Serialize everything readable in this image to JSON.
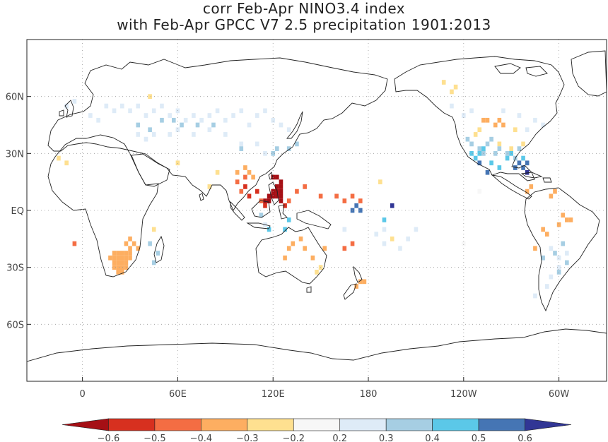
{
  "title": {
    "line1": "corr Feb-Apr NINO3.4 index",
    "line2": "with Feb-Apr GPCC V7 2.5 precipitation 1901:2013"
  },
  "map": {
    "lon_min": -35,
    "lon_max": 330,
    "lat_min": -90,
    "lat_max": 90,
    "grid": "dotted",
    "x_ticks": [
      {
        "lon": 0,
        "label": "0"
      },
      {
        "lon": 60,
        "label": "60E"
      },
      {
        "lon": 120,
        "label": "120E"
      },
      {
        "lon": 180,
        "label": "180"
      },
      {
        "lon": 240,
        "label": "120W"
      },
      {
        "lon": 300,
        "label": "60W"
      }
    ],
    "y_ticks": [
      {
        "lat": 60,
        "label": "60N"
      },
      {
        "lat": 30,
        "label": "30N"
      },
      {
        "lat": 0,
        "label": "EQ"
      },
      {
        "lat": -30,
        "label": "30S"
      },
      {
        "lat": -60,
        "label": "60S"
      }
    ]
  },
  "colorbar": {
    "colors": [
      "#a50f15",
      "#d7301f",
      "#f46d43",
      "#fdae61",
      "#fee090",
      "#f7f7f7",
      "#deebf7",
      "#a6cee3",
      "#5bc8e8",
      "#4575b4",
      "#313695"
    ],
    "labels": [
      "−0.6",
      "−0.5",
      "−0.4",
      "−0.3",
      "−0.2",
      "0.2",
      "0.3",
      "0.4",
      "0.5",
      "0.6"
    ]
  },
  "field": {
    "cells": [
      [
        120,
        17.5,
        0
      ],
      [
        122.5,
        17.5,
        0
      ],
      [
        125,
        15,
        0
      ],
      [
        122.5,
        12.5,
        0
      ],
      [
        125,
        12.5,
        0
      ],
      [
        120,
        10,
        0
      ],
      [
        122.5,
        10,
        0
      ],
      [
        125,
        10,
        0
      ],
      [
        117.5,
        7.5,
        0
      ],
      [
        120,
        7.5,
        0
      ],
      [
        122.5,
        7.5,
        0
      ],
      [
        125,
        7.5,
        0
      ],
      [
        115,
        5,
        0
      ],
      [
        117.5,
        5,
        0
      ],
      [
        125,
        5,
        0
      ],
      [
        115,
        2.5,
        1
      ],
      [
        127.5,
        2.5,
        1
      ],
      [
        110,
        10,
        1
      ],
      [
        102.5,
        12.5,
        1
      ],
      [
        105,
        7.5,
        1
      ],
      [
        102.5,
        17.5,
        2
      ],
      [
        97.5,
        15,
        2
      ],
      [
        100,
        10,
        2
      ],
      [
        112.5,
        5,
        2
      ],
      [
        130,
        5,
        2
      ],
      [
        135,
        10,
        2
      ],
      [
        140,
        12.5,
        2
      ],
      [
        150,
        7.5,
        2
      ],
      [
        160,
        7.5,
        2
      ],
      [
        165,
        5,
        2
      ],
      [
        170,
        7.5,
        2
      ],
      [
        175,
        5,
        2
      ],
      [
        165,
        -20,
        2
      ],
      [
        170,
        -17.5,
        2
      ],
      [
        -5,
        -17.5,
        2
      ],
      [
        20,
        -22.5,
        3
      ],
      [
        22.5,
        -22.5,
        3
      ],
      [
        25,
        -22.5,
        3
      ],
      [
        27.5,
        -22.5,
        3
      ],
      [
        30,
        -22.5,
        3
      ],
      [
        17.5,
        -25,
        3
      ],
      [
        20,
        -25,
        3
      ],
      [
        22.5,
        -25,
        3
      ],
      [
        25,
        -25,
        3
      ],
      [
        27.5,
        -25,
        3
      ],
      [
        30,
        -25,
        3
      ],
      [
        20,
        -27.5,
        3
      ],
      [
        22.5,
        -27.5,
        3
      ],
      [
        25,
        -27.5,
        3
      ],
      [
        27.5,
        -27.5,
        3
      ],
      [
        20,
        -30,
        3
      ],
      [
        22.5,
        -30,
        3
      ],
      [
        25,
        -30,
        3
      ],
      [
        27.5,
        -30,
        3
      ],
      [
        22.5,
        -32.5,
        3
      ],
      [
        25,
        -32.5,
        3
      ],
      [
        27.5,
        -17.5,
        3
      ],
      [
        32.5,
        -17.5,
        3
      ],
      [
        35,
        -20,
        3
      ],
      [
        30,
        -20,
        3
      ],
      [
        30,
        -15,
        3
      ],
      [
        97.5,
        20,
        3
      ],
      [
        105,
        20,
        3
      ],
      [
        107.5,
        17.5,
        3
      ],
      [
        102.5,
        22.5,
        3
      ],
      [
        132.5,
        -17.5,
        3
      ],
      [
        137.5,
        -15,
        3
      ],
      [
        130,
        -20,
        3
      ],
      [
        140,
        -20,
        3
      ],
      [
        145,
        -25,
        3
      ],
      [
        127.5,
        -25,
        3
      ],
      [
        152.5,
        -20,
        3
      ],
      [
        175,
        -37.5,
        3
      ],
      [
        172.5,
        -40,
        3
      ],
      [
        177.5,
        -37.5,
        3
      ],
      [
        252.5,
        47.5,
        3
      ],
      [
        255,
        47.5,
        3
      ],
      [
        260,
        45,
        3
      ],
      [
        265,
        45,
        3
      ],
      [
        262.5,
        47.5,
        3
      ],
      [
        302.5,
        -2.5,
        3
      ],
      [
        305,
        -5,
        3
      ],
      [
        307.5,
        -5,
        3
      ],
      [
        300,
        -7.5,
        3
      ],
      [
        290,
        -10,
        3
      ],
      [
        292.5,
        -12.5,
        3
      ],
      [
        285,
        -20,
        3
      ],
      [
        280,
        10,
        3
      ],
      [
        282.5,
        12.5,
        3
      ],
      [
        295,
        7.5,
        3
      ],
      [
        297.5,
        10,
        3
      ],
      [
        232.5,
        62.5,
        4
      ],
      [
        235,
        65,
        4
      ],
      [
        227.5,
        67.5,
        4
      ],
      [
        247.5,
        40,
        4
      ],
      [
        250,
        42.5,
        4
      ],
      [
        262.5,
        35,
        4
      ],
      [
        270,
        32.5,
        4
      ],
      [
        277.5,
        35,
        4
      ],
      [
        272.5,
        42.5,
        4
      ],
      [
        42.5,
        60,
        4
      ],
      [
        -15,
        27.5,
        4
      ],
      [
        -10,
        25,
        4
      ],
      [
        45,
        -10,
        4
      ],
      [
        150,
        -30,
        4
      ],
      [
        147.5,
        -32.5,
        4
      ],
      [
        60,
        25,
        4
      ],
      [
        80,
        12.5,
        4
      ],
      [
        85,
        20,
        4
      ],
      [
        187.5,
        15,
        4
      ],
      [
        195,
        -15,
        4
      ],
      [
        240,
        -17.5,
        5
      ],
      [
        250,
        10,
        5
      ],
      [
        15,
        55,
        6
      ],
      [
        20,
        52.5,
        6
      ],
      [
        25,
        55,
        6
      ],
      [
        30,
        52.5,
        6
      ],
      [
        35,
        55,
        6
      ],
      [
        40,
        50,
        6
      ],
      [
        45,
        52.5,
        6
      ],
      [
        50,
        55,
        6
      ],
      [
        55,
        50,
        6
      ],
      [
        60,
        52.5,
        6
      ],
      [
        65,
        47.5,
        6
      ],
      [
        70,
        50,
        6
      ],
      [
        75,
        47.5,
        6
      ],
      [
        80,
        50,
        6
      ],
      [
        85,
        52.5,
        6
      ],
      [
        90,
        47.5,
        6
      ],
      [
        95,
        50,
        6
      ],
      [
        100,
        52.5,
        6
      ],
      [
        105,
        45,
        6
      ],
      [
        110,
        50,
        6
      ],
      [
        115,
        52.5,
        6
      ],
      [
        120,
        47.5,
        6
      ],
      [
        125,
        45,
        6
      ],
      [
        130,
        42.5,
        6
      ],
      [
        5,
        50,
        6
      ],
      [
        10,
        47.5,
        6
      ],
      [
        35,
        40,
        6
      ],
      [
        40,
        37.5,
        6
      ],
      [
        45,
        40,
        6
      ],
      [
        55,
        40,
        6
      ],
      [
        60,
        42.5,
        6
      ],
      [
        70,
        40,
        6
      ],
      [
        80,
        42.5,
        6
      ],
      [
        90,
        40,
        6
      ],
      [
        100,
        35,
        6
      ],
      [
        110,
        35,
        6
      ],
      [
        115,
        30,
        6
      ],
      [
        -10,
        55,
        6
      ],
      [
        -5,
        57.5,
        6
      ],
      [
        232.5,
        55,
        6
      ],
      [
        240,
        50,
        6
      ],
      [
        245,
        52.5,
        6
      ],
      [
        265,
        52.5,
        6
      ],
      [
        275,
        50,
        6
      ],
      [
        285,
        47.5,
        6
      ],
      [
        290,
        45,
        6
      ],
      [
        280,
        42.5,
        6
      ],
      [
        295,
        -20,
        6
      ],
      [
        300,
        -25,
        6
      ],
      [
        305,
        -22.5,
        6
      ],
      [
        300,
        -30,
        6
      ],
      [
        295,
        -35,
        6
      ],
      [
        292.5,
        -40,
        6
      ],
      [
        285,
        -45,
        6
      ],
      [
        165,
        -10,
        6
      ],
      [
        185,
        -12.5,
        6
      ],
      [
        190,
        -17.5,
        6
      ],
      [
        200,
        -20,
        6
      ],
      [
        205,
        -15,
        6
      ],
      [
        210,
        -10,
        6
      ],
      [
        190,
        -10,
        6
      ],
      [
        115,
        -7.5,
        6
      ],
      [
        35,
        45,
        7
      ],
      [
        42.5,
        42.5,
        7
      ],
      [
        50,
        47.5,
        7
      ],
      [
        57.5,
        47.5,
        7
      ],
      [
        62.5,
        45,
        7
      ],
      [
        72.5,
        45,
        7
      ],
      [
        82.5,
        45,
        7
      ],
      [
        100,
        32.5,
        7
      ],
      [
        120,
        30,
        7
      ],
      [
        122.5,
        32.5,
        7
      ],
      [
        135,
        35,
        7
      ],
      [
        130,
        32.5,
        7
      ],
      [
        112.5,
        -2.5,
        7
      ],
      [
        45,
        -27.5,
        7
      ],
      [
        47.5,
        -22.5,
        7
      ],
      [
        42.5,
        -17.5,
        7
      ],
      [
        242.5,
        37.5,
        7
      ],
      [
        245,
        35,
        7
      ],
      [
        250,
        32.5,
        7
      ],
      [
        252.5,
        30,
        7
      ],
      [
        255,
        35,
        7
      ],
      [
        260,
        30,
        7
      ],
      [
        262.5,
        32.5,
        7
      ],
      [
        267.5,
        30,
        7
      ],
      [
        272.5,
        27.5,
        7
      ],
      [
        275,
        32.5,
        7
      ],
      [
        257.5,
        37.5,
        7
      ],
      [
        300,
        -32.5,
        7
      ],
      [
        305,
        -27.5,
        7
      ],
      [
        297.5,
        -22.5,
        7
      ],
      [
        302.5,
        -17.5,
        7
      ],
      [
        290,
        -25,
        7
      ],
      [
        245,
        30,
        8
      ],
      [
        247.5,
        27.5,
        8
      ],
      [
        250,
        30,
        8
      ],
      [
        252.5,
        32.5,
        8
      ],
      [
        257.5,
        25,
        8
      ],
      [
        262.5,
        22.5,
        8
      ],
      [
        267.5,
        27.5,
        8
      ],
      [
        270,
        30,
        8
      ],
      [
        277.5,
        27.5,
        8
      ],
      [
        127.5,
        -10,
        8
      ],
      [
        130,
        -5,
        8
      ],
      [
        117.5,
        -10,
        8
      ],
      [
        190,
        -5,
        8
      ],
      [
        250,
        25,
        9
      ],
      [
        255,
        20,
        9
      ],
      [
        275,
        25,
        9
      ],
      [
        277.5,
        22.5,
        9
      ],
      [
        280,
        25,
        9
      ],
      [
        272.5,
        22.5,
        9
      ],
      [
        170,
        0,
        9
      ],
      [
        172.5,
        2.5,
        9
      ],
      [
        175,
        0,
        9
      ],
      [
        195,
        2.5,
        10
      ],
      [
        280,
        20,
        10
      ]
    ]
  }
}
